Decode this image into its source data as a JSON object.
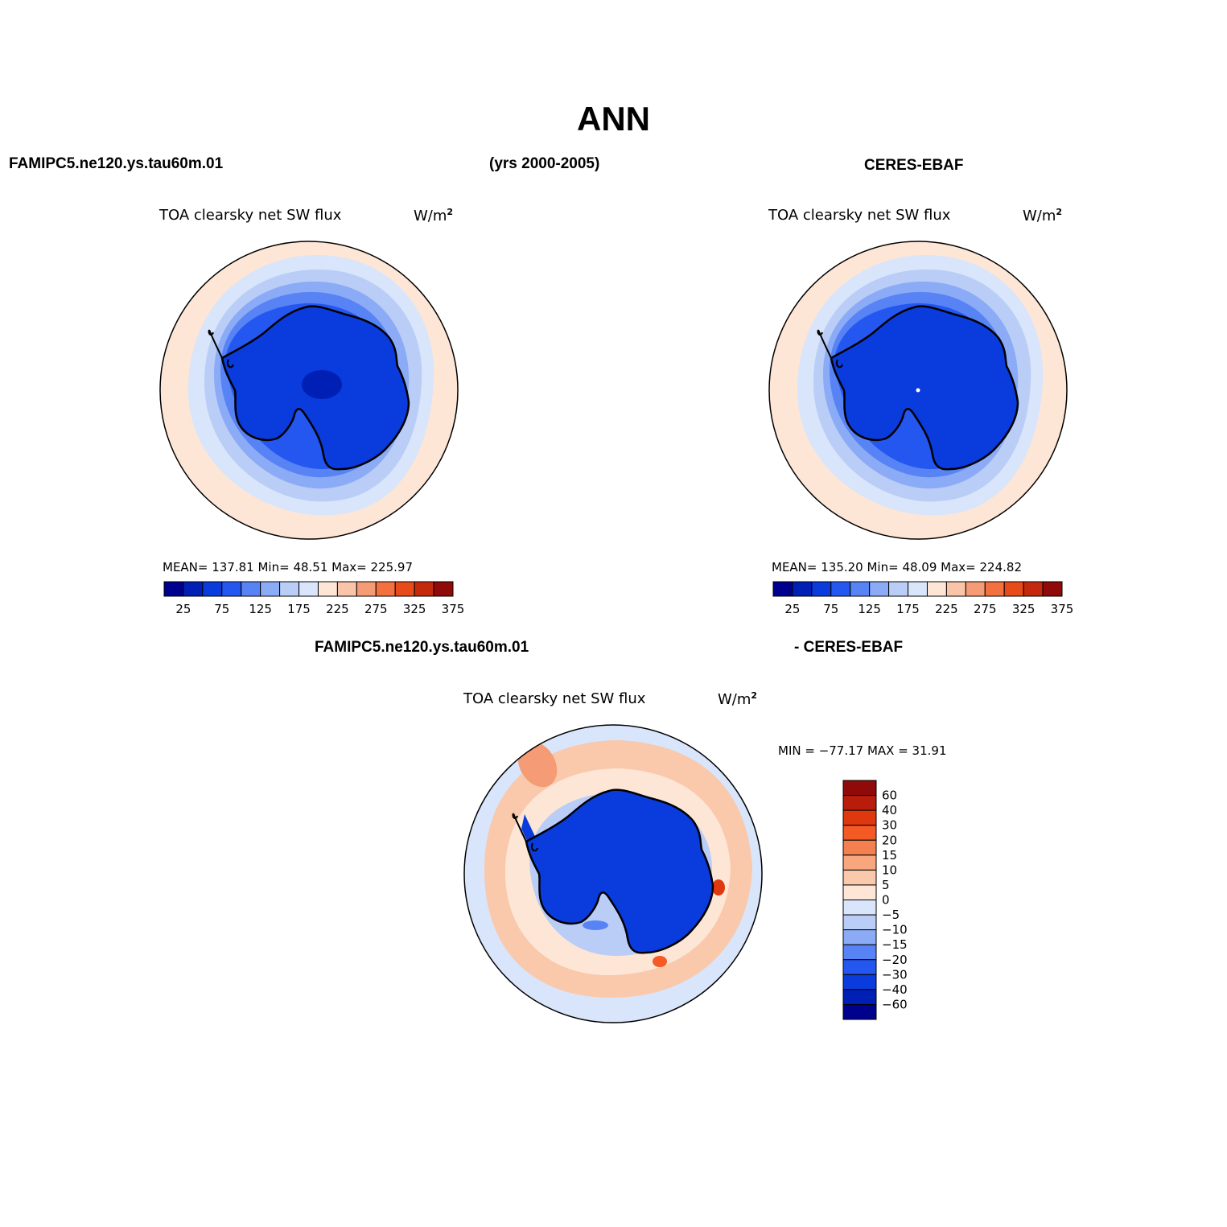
{
  "title": "ANN",
  "header": {
    "left": "FAMIPC5.ne120.ys.tau60m.01",
    "center": "(yrs 2000-2005)",
    "right": "CERES-EBAF",
    "diff_left": "FAMIPC5.ne120.ys.tau60m.01",
    "diff_right": "- CERES-EBAF"
  },
  "panels": {
    "model": {
      "title": "TOA clearsky net SW flux",
      "units": "W/m",
      "units_sup": "2",
      "stats": "MEAN= 137.81   Min=   48.51   Max= 225.97"
    },
    "obs": {
      "title": "TOA clearsky net SW flux",
      "units": "W/m",
      "units_sup": "2",
      "stats": "MEAN= 135.20   Min=   48.09   Max= 224.82"
    },
    "diff": {
      "title": "TOA clearsky net SW flux",
      "units": "W/m",
      "units_sup": "2",
      "stats": "MIN = −77.17 MAX =   31.91"
    }
  },
  "colorbar_abs": {
    "labels": [
      "25",
      "75",
      "125",
      "175",
      "225",
      "275",
      "325",
      "375"
    ],
    "colors": [
      "#00008f",
      "#0020b5",
      "#0a3bdc",
      "#2457f0",
      "#5783f5",
      "#8cabf6",
      "#b9cdf7",
      "#d8e5fb",
      "#fde6d6",
      "#f9c4a8",
      "#f59c76",
      "#f3703f",
      "#e84b1a",
      "#c5290d",
      "#8f0a08"
    ]
  },
  "colorbar_diff": {
    "labels": [
      "60",
      "40",
      "30",
      "20",
      "15",
      "10",
      "5",
      "0",
      "−5",
      "−10",
      "−15",
      "−20",
      "−30",
      "−40",
      "−60"
    ],
    "colors": [
      "#8f0a08",
      "#b81c0b",
      "#e0380e",
      "#f35a24",
      "#f5804f",
      "#f7a67e",
      "#fac8aa",
      "#fde6d6",
      "#d8e5fb",
      "#b9cdf7",
      "#8cabf6",
      "#5783f5",
      "#2457f0",
      "#0a3bdc",
      "#0020b5",
      "#00008f"
    ]
  }
}
